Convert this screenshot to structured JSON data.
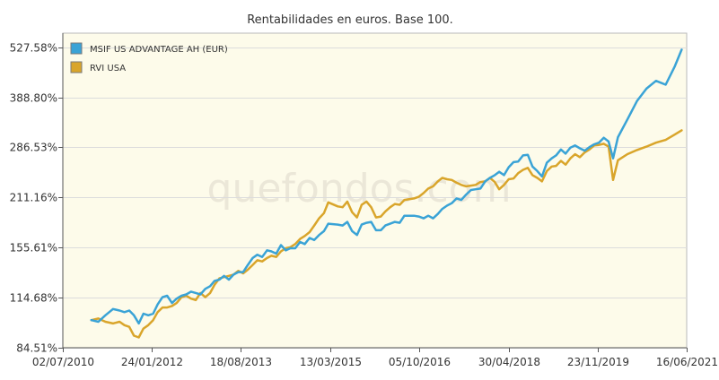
{
  "chart_data": {
    "type": "line",
    "title": "Rentabilidades en euros. Base 100.",
    "watermark": "quefondos.com",
    "y_scale": "log",
    "y_range": [
      84.51,
      575
    ],
    "x_range": [
      "2010-07-02",
      "2021-06-16"
    ],
    "y_ticks": [
      {
        "value": 84.51,
        "label": "84.51%"
      },
      {
        "value": 114.68,
        "label": "114.68%"
      },
      {
        "value": 155.61,
        "label": "155.61%"
      },
      {
        "value": 211.16,
        "label": "211.16%"
      },
      {
        "value": 286.53,
        "label": "286.53%"
      },
      {
        "value": 388.8,
        "label": "388.80%"
      },
      {
        "value": 527.58,
        "label": "527.58%"
      }
    ],
    "x_ticks": [
      {
        "date": "2010-07-02",
        "label": "02/07/2010"
      },
      {
        "date": "2012-01-24",
        "label": "24/01/2012"
      },
      {
        "date": "2013-08-18",
        "label": "18/08/2013"
      },
      {
        "date": "2015-03-13",
        "label": "13/03/2015"
      },
      {
        "date": "2016-10-05",
        "label": "05/10/2016"
      },
      {
        "date": "2018-04-30",
        "label": "30/04/2018"
      },
      {
        "date": "2019-11-23",
        "label": "23/11/2019"
      },
      {
        "date": "2021-06-16",
        "label": "16/06/2021"
      }
    ],
    "grid": "horizontal",
    "legend_position": "top-left",
    "plot_background": "#fdfbea",
    "series": [
      {
        "name": "MSIF US ADVANTAGE AH (EUR)",
        "color": "#3aa3d6",
        "points": [
          [
            "2011-01-01",
            100
          ],
          [
            "2011-02-15",
            99
          ],
          [
            "2011-04-01",
            103
          ],
          [
            "2011-05-20",
            107
          ],
          [
            "2011-07-01",
            106
          ],
          [
            "2011-08-01",
            105
          ],
          [
            "2011-09-01",
            106
          ],
          [
            "2011-10-01",
            103
          ],
          [
            "2011-11-01",
            98
          ],
          [
            "2011-12-01",
            104
          ],
          [
            "2012-01-01",
            103
          ],
          [
            "2012-02-01",
            104
          ],
          [
            "2012-03-01",
            110
          ],
          [
            "2012-04-01",
            115
          ],
          [
            "2012-05-01",
            116
          ],
          [
            "2012-06-01",
            111
          ],
          [
            "2012-07-01",
            114
          ],
          [
            "2012-08-01",
            116
          ],
          [
            "2012-09-01",
            117
          ],
          [
            "2012-10-01",
            119
          ],
          [
            "2012-11-01",
            118
          ],
          [
            "2012-12-01",
            117
          ],
          [
            "2013-01-01",
            121
          ],
          [
            "2013-02-01",
            123
          ],
          [
            "2013-03-01",
            127
          ],
          [
            "2013-04-01",
            128
          ],
          [
            "2013-05-01",
            131
          ],
          [
            "2013-06-01",
            128
          ],
          [
            "2013-07-01",
            132
          ],
          [
            "2013-08-01",
            134
          ],
          [
            "2013-09-01",
            134
          ],
          [
            "2013-10-01",
            140
          ],
          [
            "2013-11-01",
            146
          ],
          [
            "2013-12-01",
            149
          ],
          [
            "2014-01-01",
            147
          ],
          [
            "2014-02-01",
            153
          ],
          [
            "2014-03-01",
            152
          ],
          [
            "2014-04-01",
            150
          ],
          [
            "2014-05-01",
            158
          ],
          [
            "2014-06-01",
            153
          ],
          [
            "2014-07-01",
            155
          ],
          [
            "2014-08-01",
            155
          ],
          [
            "2014-09-01",
            161
          ],
          [
            "2014-10-01",
            159
          ],
          [
            "2014-11-01",
            165
          ],
          [
            "2014-12-01",
            163
          ],
          [
            "2015-01-01",
            168
          ],
          [
            "2015-02-01",
            172
          ],
          [
            "2015-03-01",
            180
          ],
          [
            "2015-05-01",
            179
          ],
          [
            "2015-06-01",
            178
          ],
          [
            "2015-07-01",
            182
          ],
          [
            "2015-08-01",
            172
          ],
          [
            "2015-09-01",
            168
          ],
          [
            "2015-10-01",
            179
          ],
          [
            "2015-11-01",
            181
          ],
          [
            "2015-12-01",
            182
          ],
          [
            "2016-01-01",
            173
          ],
          [
            "2016-02-01",
            173
          ],
          [
            "2016-03-01",
            178
          ],
          [
            "2016-04-01",
            180
          ],
          [
            "2016-05-01",
            182
          ],
          [
            "2016-06-01",
            181
          ],
          [
            "2016-07-01",
            189
          ],
          [
            "2016-09-01",
            189
          ],
          [
            "2016-10-01",
            188
          ],
          [
            "2016-11-01",
            186
          ],
          [
            "2016-12-01",
            189
          ],
          [
            "2017-01-01",
            186
          ],
          [
            "2017-02-01",
            191
          ],
          [
            "2017-03-01",
            197
          ],
          [
            "2017-04-01",
            201
          ],
          [
            "2017-05-01",
            204
          ],
          [
            "2017-06-01",
            210
          ],
          [
            "2017-07-01",
            208
          ],
          [
            "2017-08-01",
            215
          ],
          [
            "2017-09-01",
            221
          ],
          [
            "2017-10-01",
            222
          ],
          [
            "2017-11-01",
            223
          ],
          [
            "2017-12-01",
            233
          ],
          [
            "2018-01-01",
            238
          ],
          [
            "2018-02-01",
            242
          ],
          [
            "2018-03-01",
            247
          ],
          [
            "2018-04-01",
            242
          ],
          [
            "2018-05-01",
            254
          ],
          [
            "2018-06-01",
            262
          ],
          [
            "2018-07-01",
            263
          ],
          [
            "2018-08-01",
            273
          ],
          [
            "2018-09-01",
            274
          ],
          [
            "2018-10-01",
            255
          ],
          [
            "2018-11-01",
            248
          ],
          [
            "2018-12-01",
            240
          ],
          [
            "2019-01-01",
            261
          ],
          [
            "2019-02-01",
            268
          ],
          [
            "2019-03-01",
            273
          ],
          [
            "2019-04-01",
            283
          ],
          [
            "2019-05-01",
            276
          ],
          [
            "2019-06-01",
            286
          ],
          [
            "2019-07-01",
            290
          ],
          [
            "2019-08-01",
            285
          ],
          [
            "2019-09-01",
            281
          ],
          [
            "2019-10-01",
            287
          ],
          [
            "2019-11-01",
            292
          ],
          [
            "2019-12-01",
            295
          ],
          [
            "2020-01-01",
            304
          ],
          [
            "2020-02-01",
            297
          ],
          [
            "2020-03-01",
            268
          ],
          [
            "2020-04-01",
            305
          ],
          [
            "2020-06-01",
            340
          ],
          [
            "2020-08-01",
            380
          ],
          [
            "2020-10-01",
            410
          ],
          [
            "2020-12-01",
            430
          ],
          [
            "2021-02-01",
            420
          ],
          [
            "2021-04-01",
            470
          ],
          [
            "2021-05-15",
            520
          ]
        ]
      },
      {
        "name": "RVI USA",
        "color": "#d9a52b",
        "points": [
          [
            "2011-01-01",
            100
          ],
          [
            "2011-02-15",
            101
          ],
          [
            "2011-04-01",
            99
          ],
          [
            "2011-05-20",
            98
          ],
          [
            "2011-07-01",
            99
          ],
          [
            "2011-08-01",
            97
          ],
          [
            "2011-09-01",
            96
          ],
          [
            "2011-10-01",
            91
          ],
          [
            "2011-11-01",
            90
          ],
          [
            "2011-12-01",
            95
          ],
          [
            "2012-01-01",
            97
          ],
          [
            "2012-02-01",
            100
          ],
          [
            "2012-03-01",
            105
          ],
          [
            "2012-04-01",
            108
          ],
          [
            "2012-05-01",
            108
          ],
          [
            "2012-06-01",
            109
          ],
          [
            "2012-07-01",
            111
          ],
          [
            "2012-08-01",
            115
          ],
          [
            "2012-09-01",
            116
          ],
          [
            "2012-10-01",
            114
          ],
          [
            "2012-11-01",
            113
          ],
          [
            "2012-12-01",
            118
          ],
          [
            "2013-01-01",
            115
          ],
          [
            "2013-02-01",
            118
          ],
          [
            "2013-03-01",
            124
          ],
          [
            "2013-04-01",
            129
          ],
          [
            "2013-05-01",
            130
          ],
          [
            "2013-06-01",
            131
          ],
          [
            "2013-07-01",
            132
          ],
          [
            "2013-08-01",
            135
          ],
          [
            "2013-09-01",
            133
          ],
          [
            "2013-10-01",
            136
          ],
          [
            "2013-11-01",
            140
          ],
          [
            "2013-12-01",
            144
          ],
          [
            "2014-01-01",
            143
          ],
          [
            "2014-02-01",
            146
          ],
          [
            "2014-03-01",
            148
          ],
          [
            "2014-04-01",
            147
          ],
          [
            "2014-05-01",
            152
          ],
          [
            "2014-06-01",
            155
          ],
          [
            "2014-07-01",
            156
          ],
          [
            "2014-08-01",
            159
          ],
          [
            "2014-09-01",
            164
          ],
          [
            "2014-10-01",
            167
          ],
          [
            "2014-11-01",
            171
          ],
          [
            "2014-12-01",
            178
          ],
          [
            "2015-01-01",
            186
          ],
          [
            "2015-02-01",
            192
          ],
          [
            "2015-03-01",
            205
          ],
          [
            "2015-05-01",
            200
          ],
          [
            "2015-06-01",
            199
          ],
          [
            "2015-07-01",
            206
          ],
          [
            "2015-08-01",
            193
          ],
          [
            "2015-09-01",
            187
          ],
          [
            "2015-10-01",
            202
          ],
          [
            "2015-11-01",
            206
          ],
          [
            "2015-12-01",
            199
          ],
          [
            "2016-01-01",
            187
          ],
          [
            "2016-02-01",
            188
          ],
          [
            "2016-03-01",
            194
          ],
          [
            "2016-04-01",
            199
          ],
          [
            "2016-05-01",
            203
          ],
          [
            "2016-06-01",
            202
          ],
          [
            "2016-07-01",
            208
          ],
          [
            "2016-09-01",
            210
          ],
          [
            "2016-10-01",
            212
          ],
          [
            "2016-11-01",
            217
          ],
          [
            "2016-12-01",
            223
          ],
          [
            "2017-01-01",
            226
          ],
          [
            "2017-02-01",
            233
          ],
          [
            "2017-03-01",
            238
          ],
          [
            "2017-04-01",
            236
          ],
          [
            "2017-05-01",
            235
          ],
          [
            "2017-06-01",
            231
          ],
          [
            "2017-07-01",
            228
          ],
          [
            "2017-08-01",
            226
          ],
          [
            "2017-09-01",
            227
          ],
          [
            "2017-10-01",
            228
          ],
          [
            "2017-11-01",
            232
          ],
          [
            "2017-12-01",
            233
          ],
          [
            "2018-01-01",
            238
          ],
          [
            "2018-02-01",
            232
          ],
          [
            "2018-03-01",
            222
          ],
          [
            "2018-04-01",
            228
          ],
          [
            "2018-05-01",
            236
          ],
          [
            "2018-06-01",
            237
          ],
          [
            "2018-07-01",
            245
          ],
          [
            "2018-08-01",
            250
          ],
          [
            "2018-09-01",
            253
          ],
          [
            "2018-10-01",
            242
          ],
          [
            "2018-11-01",
            238
          ],
          [
            "2018-12-01",
            233
          ],
          [
            "2019-01-01",
            248
          ],
          [
            "2019-02-01",
            255
          ],
          [
            "2019-03-01",
            256
          ],
          [
            "2019-04-01",
            264
          ],
          [
            "2019-05-01",
            258
          ],
          [
            "2019-06-01",
            268
          ],
          [
            "2019-07-01",
            275
          ],
          [
            "2019-08-01",
            270
          ],
          [
            "2019-09-01",
            278
          ],
          [
            "2019-10-01",
            283
          ],
          [
            "2019-11-01",
            290
          ],
          [
            "2019-12-01",
            291
          ],
          [
            "2020-01-01",
            293
          ],
          [
            "2020-02-01",
            288
          ],
          [
            "2020-03-01",
            235
          ],
          [
            "2020-04-01",
            265
          ],
          [
            "2020-06-01",
            275
          ],
          [
            "2020-08-01",
            282
          ],
          [
            "2020-10-01",
            288
          ],
          [
            "2020-12-01",
            295
          ],
          [
            "2021-02-01",
            300
          ],
          [
            "2021-04-01",
            310
          ],
          [
            "2021-05-15",
            318
          ]
        ]
      }
    ]
  }
}
